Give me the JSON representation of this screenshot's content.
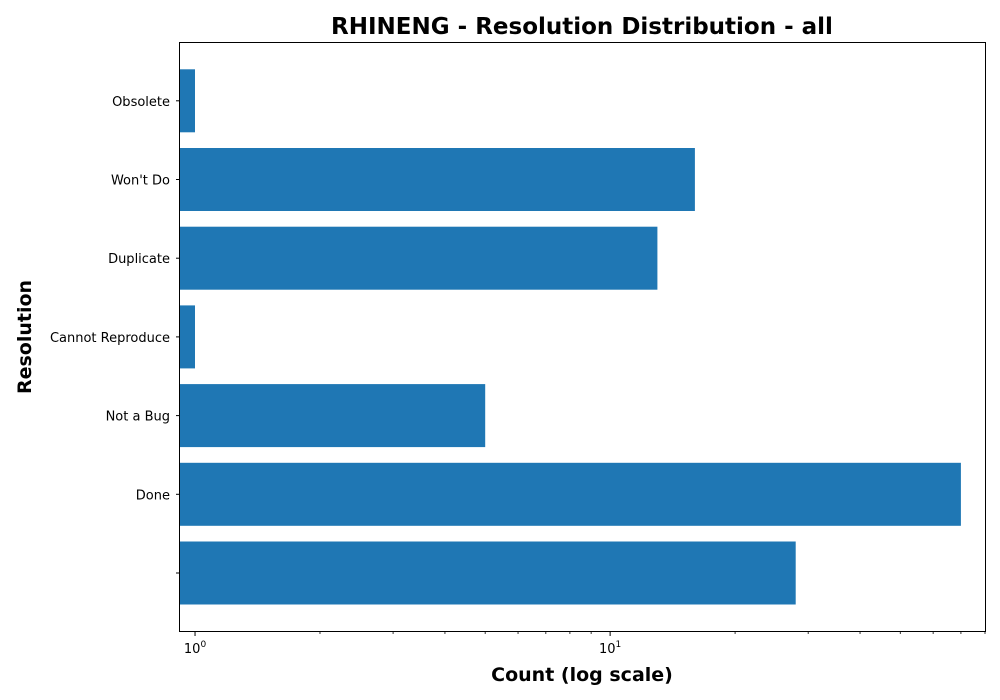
{
  "chart_data": {
    "type": "bar",
    "orientation": "horizontal",
    "title": "RHINENG - Resolution Distribution - all",
    "xlabel": "Count (log scale)",
    "ylabel": "Resolution",
    "x_scale": "log",
    "xlim": [
      0.92,
      80
    ],
    "x_ticks": [
      {
        "base": "10",
        "exp": "0",
        "value": 1
      },
      {
        "base": "10",
        "exp": "1",
        "value": 10
      }
    ],
    "categories": [
      "",
      "Done",
      "Not a Bug",
      "Cannot Reproduce",
      "Duplicate",
      "Won't Do",
      "Obsolete"
    ],
    "values": [
      28,
      70,
      5,
      1,
      13,
      16,
      1
    ],
    "bar_color": "#1f77b4",
    "grid": false,
    "legend": false
  }
}
